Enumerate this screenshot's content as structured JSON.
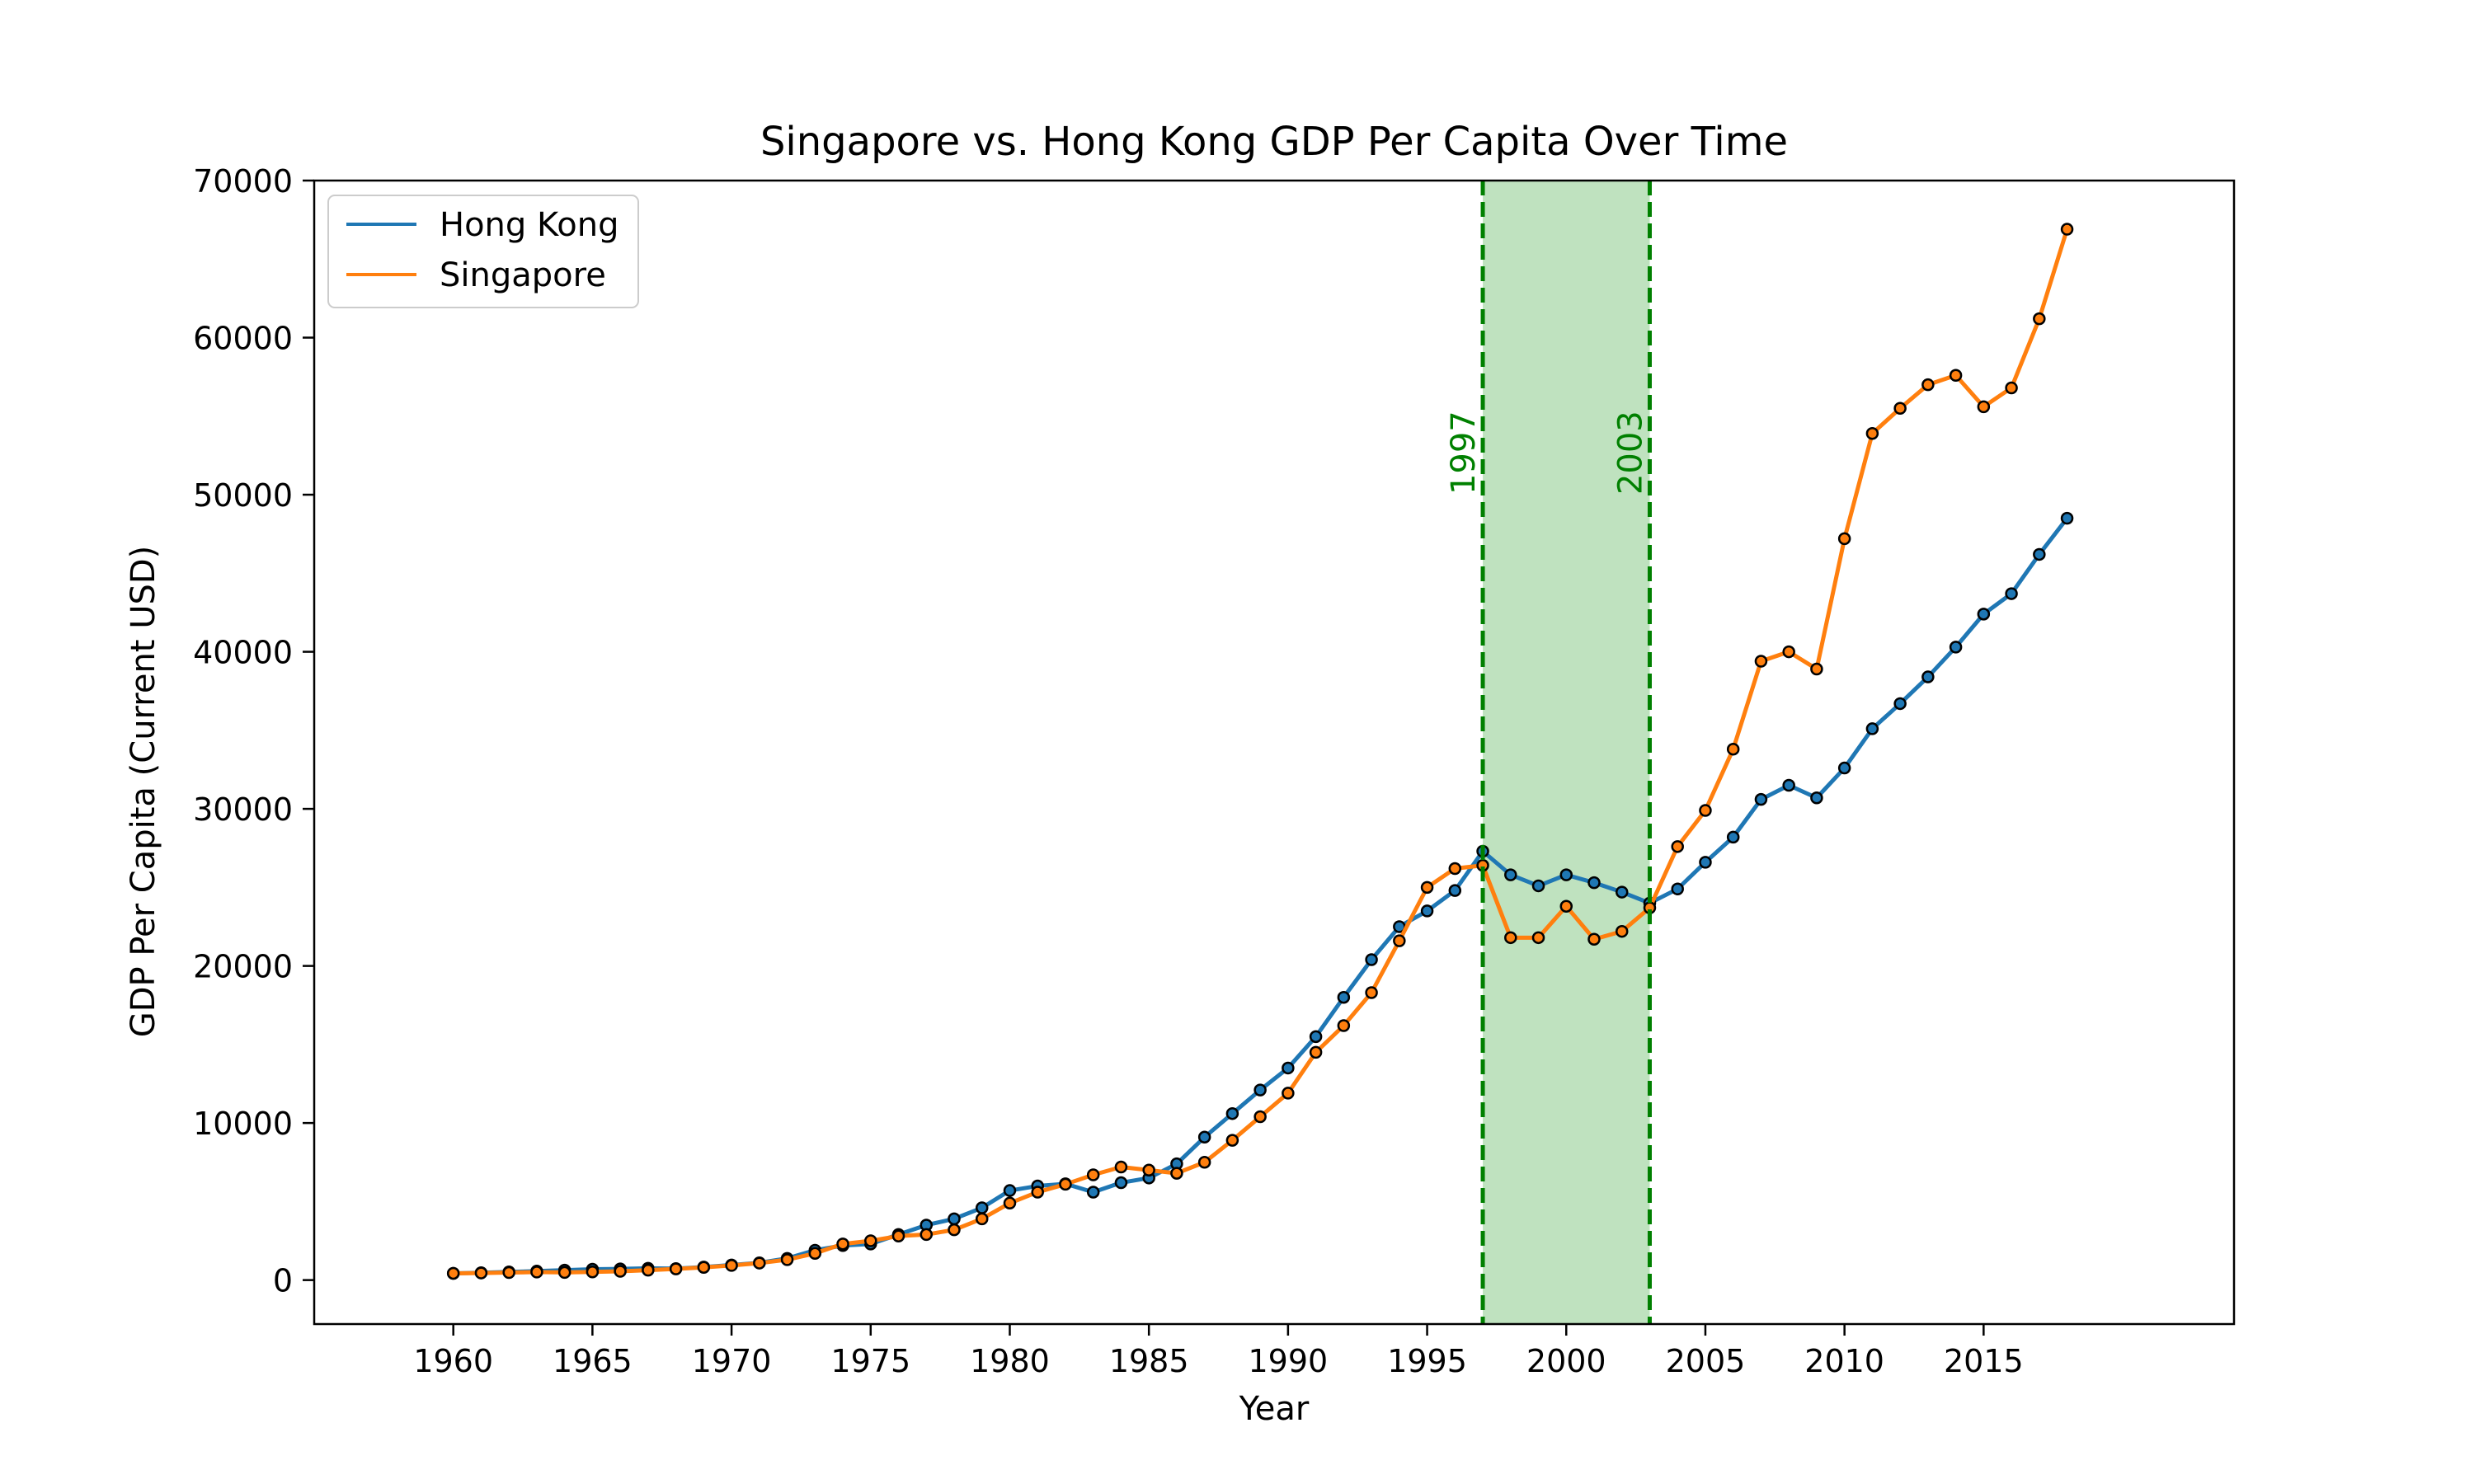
{
  "chart_data": {
    "type": "line",
    "title": "Singapore vs. Hong Kong GDP Per Capita Over Time",
    "xlabel": "Year",
    "ylabel": "GDP Per Capita (Current USD)",
    "xlim": [
      1955,
      2024
    ],
    "ylim": [
      -2800,
      70000
    ],
    "x_ticks": [
      1960,
      1965,
      1970,
      1975,
      1980,
      1985,
      1990,
      1995,
      2000,
      2005,
      2010,
      2015
    ],
    "y_ticks": [
      0,
      10000,
      20000,
      30000,
      40000,
      50000,
      60000,
      70000
    ],
    "grid": false,
    "legend_position": "upper-left",
    "x": [
      1960,
      1961,
      1962,
      1963,
      1964,
      1965,
      1966,
      1967,
      1968,
      1969,
      1970,
      1971,
      1972,
      1973,
      1974,
      1975,
      1976,
      1977,
      1978,
      1979,
      1980,
      1981,
      1982,
      1983,
      1984,
      1985,
      1986,
      1987,
      1988,
      1989,
      1990,
      1991,
      1992,
      1993,
      1994,
      1995,
      1996,
      1997,
      1998,
      1999,
      2000,
      2001,
      2002,
      2003,
      2004,
      2005,
      2006,
      2007,
      2008,
      2009,
      2010,
      2011,
      2012,
      2013,
      2014,
      2015,
      2016,
      2017,
      2018
    ],
    "series": [
      {
        "name": "Hong Kong",
        "color": "#1f77b4",
        "values": [
          430,
          470,
          520,
          570,
          630,
          690,
          710,
          750,
          730,
          830,
          960,
          1100,
          1380,
          1900,
          2200,
          2300,
          2900,
          3500,
          3900,
          4600,
          5700,
          5990,
          6130,
          5600,
          6200,
          6500,
          7400,
          9100,
          10600,
          12100,
          13500,
          15500,
          18000,
          20400,
          22500,
          23500,
          24800,
          27300,
          25800,
          25100,
          25800,
          25300,
          24700,
          24000,
          24900,
          26600,
          28200,
          30600,
          31500,
          30700,
          32600,
          35100,
          36700,
          38400,
          40300,
          42400,
          43700,
          46200,
          48500
        ]
      },
      {
        "name": "Singapore",
        "color": "#ff7f0e",
        "values": [
          430,
          450,
          480,
          510,
          485,
          520,
          560,
          630,
          710,
          810,
          930,
          1080,
          1300,
          1700,
          2300,
          2500,
          2800,
          2900,
          3200,
          3900,
          4900,
          5600,
          6100,
          6700,
          7200,
          7000,
          6800,
          7500,
          8900,
          10400,
          11900,
          14500,
          16200,
          18300,
          21600,
          25000,
          26200,
          26400,
          21800,
          21800,
          23800,
          21700,
          22200,
          23700,
          27600,
          29900,
          33800,
          39400,
          40000,
          38900,
          47200,
          53900,
          55500,
          57000,
          57600,
          55600,
          56800,
          61200,
          66900
        ]
      }
    ],
    "annotations": {
      "shaded_region": [
        1997,
        2003
      ],
      "shade_color": "#2ca02c",
      "line_color": "#008000",
      "labels": [
        {
          "year": 1997,
          "text": "1997"
        },
        {
          "year": 2003,
          "text": "2003"
        }
      ],
      "label_y": 50000
    }
  }
}
